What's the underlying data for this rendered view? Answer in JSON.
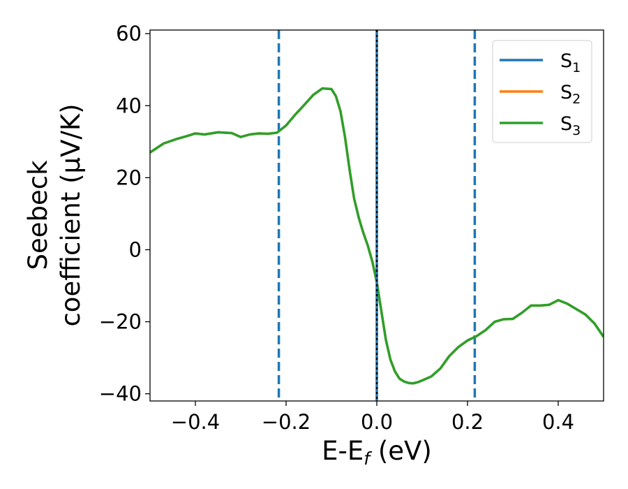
{
  "chart_data": {
    "type": "line",
    "title": "",
    "xlabel": {
      "main": "E-E",
      "subscript": "f",
      "unit": " (eV)"
    },
    "ylabel": {
      "line1": "Seebeck",
      "line2": "coefficient  (μV/K)"
    },
    "xlim": [
      -0.5,
      0.5
    ],
    "ylim": [
      -42,
      61
    ],
    "xticks": [
      -0.4,
      -0.2,
      0.0,
      0.2,
      0.4
    ],
    "xtick_labels": [
      "−0.4",
      "−0.2",
      "0.0",
      "0.2",
      "0.4"
    ],
    "yticks": [
      -40,
      -20,
      0,
      20,
      40,
      60
    ],
    "ytick_labels": [
      "−40",
      "−20",
      "0",
      "20",
      "40",
      "60"
    ],
    "grid": false,
    "legend_position": "top-right",
    "vlines": [
      {
        "x": -0.216,
        "style": "dashed",
        "color": "#1f77b4"
      },
      {
        "x": 0.216,
        "style": "dashed",
        "color": "#1f77b4"
      },
      {
        "x": 0.0,
        "style": "solid",
        "color": "#1f77b4"
      },
      {
        "x": 0.0,
        "style": "dotted",
        "color": "#000000"
      }
    ],
    "series": [
      {
        "name": "S",
        "subscript": "1",
        "color": "#1f77b4",
        "x": [
          0.0,
          0.0
        ],
        "y": [
          -42,
          61
        ]
      },
      {
        "name": "S",
        "subscript": "2",
        "color": "#ff7f0e",
        "x": [
          -0.5,
          -0.47,
          -0.44,
          -0.42,
          -0.4,
          -0.38,
          -0.35,
          -0.32,
          -0.3,
          -0.28,
          -0.26,
          -0.24,
          -0.22,
          -0.2,
          -0.18,
          -0.16,
          -0.14,
          -0.12,
          -0.1,
          -0.09,
          -0.08,
          -0.07,
          -0.06,
          -0.05,
          -0.04,
          -0.03,
          -0.02,
          -0.01,
          0.0,
          0.01,
          0.02,
          0.03,
          0.04,
          0.05,
          0.06,
          0.07,
          0.08,
          0.09,
          0.1,
          0.12,
          0.14,
          0.16,
          0.18,
          0.2,
          0.22,
          0.24,
          0.26,
          0.28,
          0.3,
          0.32,
          0.34,
          0.36,
          0.38,
          0.4,
          0.42,
          0.44,
          0.46,
          0.48,
          0.5
        ],
        "y": [
          27,
          29.5,
          30.8,
          31.5,
          32.3,
          32.0,
          32.6,
          32.4,
          31.3,
          32.0,
          32.3,
          32.2,
          32.5,
          34.5,
          37.5,
          40.2,
          43.0,
          44.8,
          44.6,
          42.6,
          38.4,
          31.2,
          22.2,
          14.2,
          9.0,
          4.8,
          1.2,
          -3.2,
          -9.0,
          -17.0,
          -25.0,
          -30.5,
          -33.8,
          -35.8,
          -36.6,
          -37.0,
          -37.1,
          -36.8,
          -36.3,
          -35.2,
          -33.0,
          -29.5,
          -27.0,
          -25.2,
          -24.0,
          -22.3,
          -20.0,
          -19.3,
          -19.2,
          -17.5,
          -15.5,
          -15.5,
          -15.3,
          -14.0,
          -15.0,
          -16.5,
          -18.0,
          -20.5,
          -24.2
        ]
      },
      {
        "name": "S",
        "subscript": "3",
        "color": "#2ca02c",
        "x": [
          -0.5,
          -0.47,
          -0.44,
          -0.42,
          -0.4,
          -0.38,
          -0.35,
          -0.32,
          -0.3,
          -0.28,
          -0.26,
          -0.24,
          -0.22,
          -0.2,
          -0.18,
          -0.16,
          -0.14,
          -0.12,
          -0.1,
          -0.09,
          -0.08,
          -0.07,
          -0.06,
          -0.05,
          -0.04,
          -0.03,
          -0.02,
          -0.01,
          0.0,
          0.01,
          0.02,
          0.03,
          0.04,
          0.05,
          0.06,
          0.07,
          0.08,
          0.09,
          0.1,
          0.12,
          0.14,
          0.16,
          0.18,
          0.2,
          0.22,
          0.24,
          0.26,
          0.28,
          0.3,
          0.32,
          0.34,
          0.36,
          0.38,
          0.4,
          0.42,
          0.44,
          0.46,
          0.48,
          0.5
        ],
        "y": [
          27,
          29.5,
          30.8,
          31.5,
          32.3,
          32.0,
          32.6,
          32.4,
          31.3,
          32.0,
          32.3,
          32.2,
          32.5,
          34.5,
          37.5,
          40.2,
          43.0,
          44.8,
          44.6,
          42.6,
          38.4,
          31.2,
          22.2,
          14.2,
          9.0,
          4.8,
          1.2,
          -3.2,
          -9.0,
          -17.0,
          -25.0,
          -30.5,
          -33.8,
          -35.8,
          -36.6,
          -37.0,
          -37.1,
          -36.8,
          -36.3,
          -35.2,
          -33.0,
          -29.5,
          -27.0,
          -25.2,
          -24.0,
          -22.3,
          -20.0,
          -19.3,
          -19.2,
          -17.5,
          -15.5,
          -15.5,
          -15.3,
          -14.0,
          -15.0,
          -16.5,
          -18.0,
          -20.5,
          -24.2
        ]
      }
    ]
  }
}
